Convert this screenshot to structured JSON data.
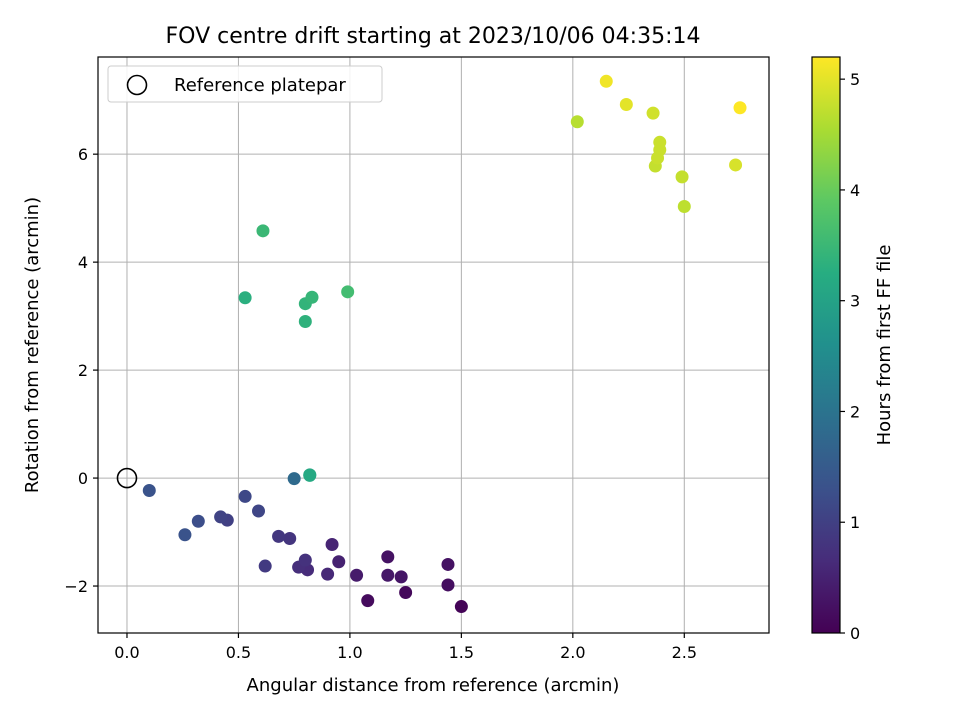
{
  "chart_data": {
    "type": "scatter",
    "title": "FOV centre drift starting at 2023/10/06 04:35:14",
    "xlabel": "Angular distance from reference (arcmin)",
    "ylabel": "Rotation from reference (arcmin)",
    "xlim": [
      -0.13,
      2.88
    ],
    "ylim": [
      -2.87,
      7.8
    ],
    "x_ticks": [
      "0.0",
      "0.5",
      "1.0",
      "1.5",
      "2.0",
      "2.5"
    ],
    "y_ticks": [
      "−2",
      "0",
      "2",
      "4",
      "6"
    ],
    "grid": true,
    "legend": {
      "position": "top-left",
      "entries": [
        "Reference platepar"
      ]
    },
    "colorbar": {
      "label": "Hours from first FF file",
      "colormap": "viridis",
      "range": [
        0,
        5.2
      ],
      "ticks": [
        "0",
        "1",
        "2",
        "3",
        "4",
        "5"
      ]
    },
    "reference_point": {
      "x": 0.0,
      "y": 0.0
    },
    "points": [
      {
        "x": 1.5,
        "y": -2.38,
        "hours": 0.05
      },
      {
        "x": 1.25,
        "y": -2.12,
        "hours": 0.1
      },
      {
        "x": 1.08,
        "y": -2.27,
        "hours": 0.15
      },
      {
        "x": 1.44,
        "y": -1.98,
        "hours": 0.2
      },
      {
        "x": 1.44,
        "y": -1.6,
        "hours": 0.25
      },
      {
        "x": 1.17,
        "y": -1.46,
        "hours": 0.25
      },
      {
        "x": 1.23,
        "y": -1.83,
        "hours": 0.3
      },
      {
        "x": 1.17,
        "y": -1.8,
        "hours": 0.35
      },
      {
        "x": 1.03,
        "y": -1.8,
        "hours": 0.4
      },
      {
        "x": 0.95,
        "y": -1.55,
        "hours": 0.5
      },
      {
        "x": 0.92,
        "y": -1.23,
        "hours": 0.55
      },
      {
        "x": 0.9,
        "y": -1.78,
        "hours": 0.6
      },
      {
        "x": 0.81,
        "y": -1.7,
        "hours": 0.65
      },
      {
        "x": 0.77,
        "y": -1.65,
        "hours": 0.7
      },
      {
        "x": 0.8,
        "y": -1.52,
        "hours": 0.75
      },
      {
        "x": 0.73,
        "y": -1.12,
        "hours": 0.8
      },
      {
        "x": 0.68,
        "y": -1.08,
        "hours": 0.85
      },
      {
        "x": 0.62,
        "y": -1.63,
        "hours": 0.9
      },
      {
        "x": 0.45,
        "y": -0.78,
        "hours": 1.0
      },
      {
        "x": 0.42,
        "y": -0.72,
        "hours": 1.05
      },
      {
        "x": 0.59,
        "y": -0.61,
        "hours": 1.1
      },
      {
        "x": 0.53,
        "y": -0.34,
        "hours": 1.15
      },
      {
        "x": 0.32,
        "y": -0.8,
        "hours": 1.25
      },
      {
        "x": 0.26,
        "y": -1.05,
        "hours": 1.35
      },
      {
        "x": 0.1,
        "y": -0.23,
        "hours": 1.35
      },
      {
        "x": 0.75,
        "y": -0.01,
        "hours": 1.8
      },
      {
        "x": 0.82,
        "y": 0.06,
        "hours": 3.1
      },
      {
        "x": 0.82,
        "y": 0.05,
        "hours": 3.15
      },
      {
        "x": 0.53,
        "y": 3.34,
        "hours": 3.3
      },
      {
        "x": 0.8,
        "y": 2.9,
        "hours": 3.35
      },
      {
        "x": 0.8,
        "y": 3.23,
        "hours": 3.4
      },
      {
        "x": 0.83,
        "y": 3.35,
        "hours": 3.45
      },
      {
        "x": 0.61,
        "y": 4.58,
        "hours": 3.5
      },
      {
        "x": 0.99,
        "y": 3.45,
        "hours": 3.6
      },
      {
        "x": 2.02,
        "y": 6.6,
        "hours": 4.65
      },
      {
        "x": 2.5,
        "y": 5.03,
        "hours": 4.7
      },
      {
        "x": 2.49,
        "y": 5.58,
        "hours": 4.75
      },
      {
        "x": 2.37,
        "y": 5.78,
        "hours": 4.75
      },
      {
        "x": 2.38,
        "y": 5.93,
        "hours": 4.8
      },
      {
        "x": 2.39,
        "y": 6.08,
        "hours": 4.8
      },
      {
        "x": 2.39,
        "y": 6.22,
        "hours": 4.8
      },
      {
        "x": 2.36,
        "y": 6.76,
        "hours": 4.85
      },
      {
        "x": 2.73,
        "y": 5.8,
        "hours": 4.9
      },
      {
        "x": 2.24,
        "y": 6.92,
        "hours": 5.0
      },
      {
        "x": 2.15,
        "y": 7.35,
        "hours": 5.1
      },
      {
        "x": 2.75,
        "y": 6.86,
        "hours": 5.2
      }
    ]
  }
}
